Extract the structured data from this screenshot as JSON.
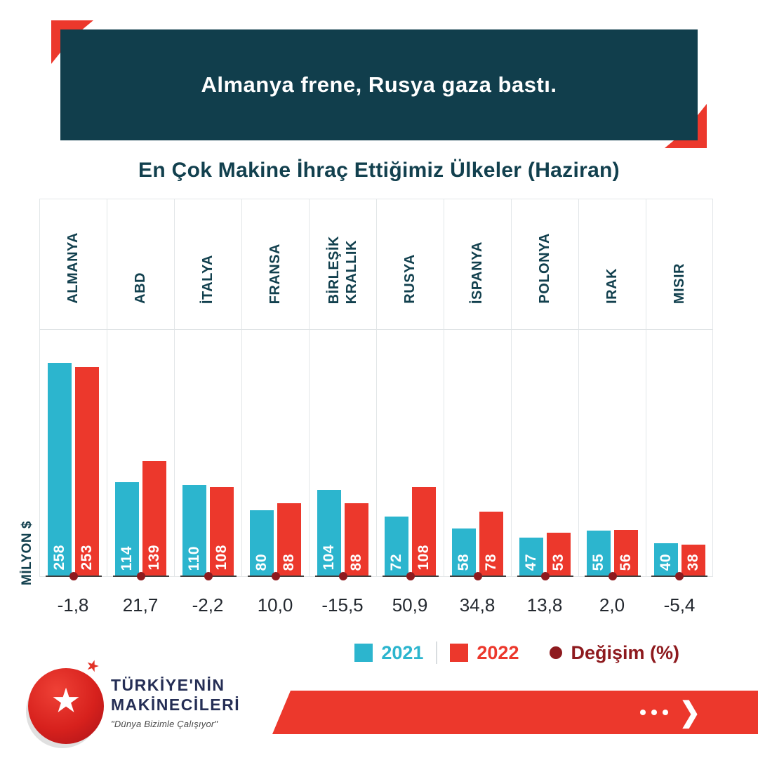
{
  "banner": {
    "title": "Almanya frene, Rusya gaza bastı."
  },
  "subtitle": "En Çok Makine İhraç Ettiğimiz Ülkeler (Haziran)",
  "chart_data": {
    "type": "bar",
    "title": "En Çok Makine İhraç Ettiğimiz Ülkeler (Haziran)",
    "ylabel": "MİLYON $",
    "categories": [
      "ALMANYA",
      "ABD",
      "İTALYA",
      "FRANSA",
      "BİRLEŞİK\nKRALLIK",
      "RUSYA",
      "İSPANYA",
      "POLONYA",
      "IRAK",
      "MISIR"
    ],
    "series": [
      {
        "name": "2021",
        "color": "#2CB5CE",
        "values": [
          258,
          114,
          110,
          80,
          104,
          72,
          58,
          47,
          55,
          40
        ]
      },
      {
        "name": "2022",
        "color": "#EC382C",
        "values": [
          253,
          139,
          108,
          88,
          88,
          108,
          78,
          53,
          56,
          38
        ]
      }
    ],
    "change_percent_label": "Değişim (%)",
    "change_percent": [
      "-1,8",
      "21,7",
      "-2,2",
      "10,0",
      "-15,5",
      "50,9",
      "34,8",
      "13,8",
      "2,0",
      "-5,4"
    ],
    "ymax": 258,
    "grid": "vertical",
    "legend_position": "bottom-right"
  },
  "legend": {
    "items": [
      {
        "label": "2021",
        "swatch": "square",
        "color": "#2CB5CE"
      },
      {
        "label": "2022",
        "swatch": "square",
        "color": "#EC382C"
      },
      {
        "label": "Değişim (%)",
        "swatch": "dot",
        "color": "#8E1A1E"
      }
    ]
  },
  "logo": {
    "line1": "TÜRKİYE'NİN",
    "line2": "MAKİNECİLERİ",
    "tagline": "\"Dünya Bizimle Çalışıyor\""
  },
  "icons": {
    "star": "★",
    "small_star": "★",
    "arrow": "❯"
  },
  "colors": {
    "banner_bg": "#113E4C",
    "accent_red": "#EC382C",
    "cyan": "#2CB5CE",
    "maroon": "#8E1A1E",
    "text_teal": "#12404E"
  }
}
